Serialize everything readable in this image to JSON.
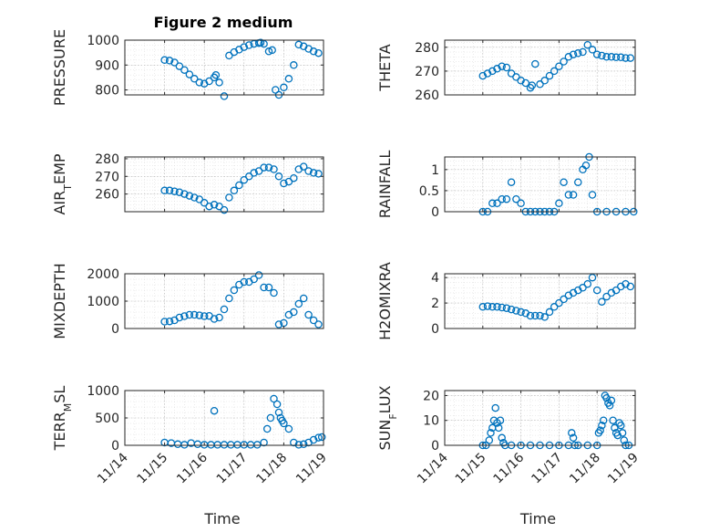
{
  "colors": {
    "marker": "#0072BD",
    "axis": "#262626"
  },
  "chart_data": [
    {
      "type": "scatter",
      "title": "Figure 2 medium",
      "ylabel": "PRESSURE",
      "ylim": [
        780,
        1000
      ],
      "yticks": [
        800,
        900,
        1000
      ],
      "xlim": [
        "11/15 12:00",
        "11/19 00:00"
      ],
      "xticks": [],
      "grid": true,
      "x": [
        "11/15 00:00",
        "11/15 03:00",
        "11/15 06:00",
        "11/15 09:00",
        "11/15 12:00",
        "11/15 15:00",
        "11/15 18:00",
        "11/15 21:00",
        "11/16 00:00",
        "11/16 03:00",
        "11/16 06:00",
        "11/16 07:00",
        "11/16 09:00",
        "11/16 12:00",
        "11/16 15:00",
        "11/16 18:00",
        "11/16 21:00",
        "11/17 00:00",
        "11/17 03:00",
        "11/17 06:00",
        "11/17 09:00",
        "11/17 10:00",
        "11/17 12:00",
        "11/17 15:00",
        "11/17 17:00",
        "11/17 19:00",
        "11/17 21:00",
        "11/18 00:00",
        "11/18 03:00",
        "11/18 06:00",
        "11/18 09:00",
        "11/18 12:00",
        "11/18 15:00",
        "11/18 18:00",
        "11/18 21:00"
      ],
      "y": [
        920,
        918,
        910,
        895,
        880,
        862,
        845,
        830,
        825,
        835,
        850,
        860,
        830,
        775,
        938,
        952,
        962,
        972,
        980,
        985,
        988,
        990,
        985,
        955,
        960,
        800,
        780,
        810,
        845,
        900,
        982,
        975,
        965,
        955,
        948
      ]
    },
    {
      "type": "scatter",
      "ylabel": "THETA",
      "ylim": [
        260,
        283
      ],
      "yticks": [
        260,
        270,
        280
      ],
      "xticks": [],
      "grid": true,
      "x": [
        "11/15 00:00",
        "11/15 03:00",
        "11/15 06:00",
        "11/15 09:00",
        "11/15 12:00",
        "11/15 15:00",
        "11/15 18:00",
        "11/15 21:00",
        "11/16 00:00",
        "11/16 03:00",
        "11/16 06:00",
        "11/16 07:00",
        "11/16 09:00",
        "11/16 12:00",
        "11/16 15:00",
        "11/16 18:00",
        "11/16 21:00",
        "11/17 00:00",
        "11/17 03:00",
        "11/17 06:00",
        "11/17 09:00",
        "11/17 12:00",
        "11/17 15:00",
        "11/17 18:00",
        "11/17 21:00",
        "11/18 00:00",
        "11/18 03:00",
        "11/18 06:00",
        "11/18 09:00",
        "11/18 12:00",
        "11/18 15:00",
        "11/18 18:00",
        "11/18 21:00"
      ],
      "y": [
        268,
        269,
        270,
        271,
        272,
        271.5,
        269,
        267.5,
        266,
        265,
        263,
        264,
        273,
        264.5,
        266,
        268,
        270,
        272,
        274,
        276,
        277,
        277.5,
        278,
        281,
        279,
        277,
        276.5,
        276,
        276,
        275.8,
        275.8,
        275.5,
        275.5
      ]
    },
    {
      "type": "scatter",
      "ylabel": "AIR_TEMP",
      "ylim": [
        250,
        281
      ],
      "yticks": [
        260,
        270,
        280
      ],
      "xticks": [],
      "grid": true,
      "x": [
        "11/15 00:00",
        "11/15 03:00",
        "11/15 06:00",
        "11/15 09:00",
        "11/15 12:00",
        "11/15 15:00",
        "11/15 18:00",
        "11/15 21:00",
        "11/16 00:00",
        "11/16 03:00",
        "11/16 06:00",
        "11/16 09:00",
        "11/16 12:00",
        "11/16 15:00",
        "11/16 18:00",
        "11/16 21:00",
        "11/17 00:00",
        "11/17 03:00",
        "11/17 06:00",
        "11/17 09:00",
        "11/17 12:00",
        "11/17 15:00",
        "11/17 18:00",
        "11/17 21:00",
        "11/18 00:00",
        "11/18 03:00",
        "11/18 06:00",
        "11/18 09:00",
        "11/18 12:00",
        "11/18 15:00",
        "11/18 18:00",
        "11/18 21:00"
      ],
      "y": [
        262,
        262,
        261.5,
        261,
        260,
        259,
        258,
        257,
        255,
        253,
        254,
        253,
        251,
        258,
        262,
        265,
        268,
        270,
        272,
        273,
        275,
        275,
        274,
        270,
        266,
        267,
        269,
        274,
        275.5,
        273,
        272,
        271.5
      ]
    },
    {
      "type": "scatter",
      "ylabel": "RAINFALL",
      "ylim": [
        0,
        1.3
      ],
      "yticks": [
        0,
        0.5,
        1
      ],
      "xticks": [],
      "grid": true,
      "x": [
        "11/15 00:00",
        "11/15 03:00",
        "11/15 06:00",
        "11/15 09:00",
        "11/15 12:00",
        "11/15 15:00",
        "11/15 18:00",
        "11/15 21:00",
        "11/16 00:00",
        "11/16 03:00",
        "11/16 06:00",
        "11/16 09:00",
        "11/16 12:00",
        "11/16 15:00",
        "11/16 18:00",
        "11/16 21:00",
        "11/17 00:00",
        "11/17 03:00",
        "11/17 06:00",
        "11/17 09:00",
        "11/17 12:00",
        "11/17 15:00",
        "11/17 17:00",
        "11/17 19:00",
        "11/17 21:00",
        "11/18 00:00",
        "11/18 06:00",
        "11/18 12:00",
        "11/18 18:00",
        "11/18 23:00"
      ],
      "y": [
        0,
        0,
        0.2,
        0.2,
        0.3,
        0.3,
        0.7,
        0.3,
        0.2,
        0,
        0,
        0,
        0,
        0,
        0,
        0,
        0.2,
        0.7,
        0.4,
        0.4,
        0.7,
        1.0,
        1.1,
        1.3,
        0.4,
        0,
        0,
        0,
        0,
        0
      ]
    },
    {
      "type": "scatter",
      "ylabel": "MIXDEPTH",
      "ylim": [
        0,
        2000
      ],
      "yticks": [
        0,
        1000,
        2000
      ],
      "xticks": [],
      "grid": true,
      "x": [
        "11/15 00:00",
        "11/15 03:00",
        "11/15 06:00",
        "11/15 09:00",
        "11/15 12:00",
        "11/15 15:00",
        "11/15 18:00",
        "11/15 21:00",
        "11/16 00:00",
        "11/16 03:00",
        "11/16 06:00",
        "11/16 09:00",
        "11/16 12:00",
        "11/16 15:00",
        "11/16 18:00",
        "11/16 21:00",
        "11/17 00:00",
        "11/17 03:00",
        "11/17 06:00",
        "11/17 09:00",
        "11/17 12:00",
        "11/17 15:00",
        "11/17 18:00",
        "11/17 21:00",
        "11/18 00:00",
        "11/18 03:00",
        "11/18 06:00",
        "11/18 09:00",
        "11/18 12:00",
        "11/18 15:00",
        "11/18 18:00",
        "11/18 21:00"
      ],
      "y": [
        250,
        260,
        300,
        400,
        450,
        500,
        500,
        480,
        450,
        460,
        350,
        400,
        700,
        1100,
        1400,
        1600,
        1700,
        1700,
        1800,
        1950,
        1500,
        1500,
        1300,
        150,
        200,
        500,
        600,
        900,
        1100,
        500,
        300,
        150
      ]
    },
    {
      "type": "scatter",
      "ylabel": "H2OMIXRA",
      "ylim": [
        0,
        4.3
      ],
      "yticks": [
        0,
        2,
        4
      ],
      "xticks": [],
      "grid": true,
      "x": [
        "11/15 00:00",
        "11/15 03:00",
        "11/15 06:00",
        "11/15 09:00",
        "11/15 12:00",
        "11/15 15:00",
        "11/15 18:00",
        "11/15 21:00",
        "11/16 00:00",
        "11/16 03:00",
        "11/16 06:00",
        "11/16 09:00",
        "11/16 12:00",
        "11/16 15:00",
        "11/16 18:00",
        "11/16 21:00",
        "11/17 00:00",
        "11/17 03:00",
        "11/17 06:00",
        "11/17 09:00",
        "11/17 12:00",
        "11/17 15:00",
        "11/17 18:00",
        "11/17 21:00",
        "11/18 00:00",
        "11/18 03:00",
        "11/18 06:00",
        "11/18 09:00",
        "11/18 12:00",
        "11/18 15:00",
        "11/18 18:00",
        "11/18 21:00"
      ],
      "y": [
        1.7,
        1.75,
        1.7,
        1.7,
        1.65,
        1.6,
        1.5,
        1.4,
        1.3,
        1.2,
        1.0,
        1.0,
        1.0,
        0.9,
        1.3,
        1.7,
        2.0,
        2.3,
        2.6,
        2.8,
        3.0,
        3.2,
        3.5,
        4.0,
        3.0,
        2.1,
        2.5,
        2.8,
        3.0,
        3.3,
        3.5,
        3.3
      ]
    },
    {
      "type": "scatter",
      "ylabel": "TERR_MSL",
      "ylim": [
        0,
        1000
      ],
      "yticks": [
        0,
        500,
        1000
      ],
      "xlim": [
        "11/14 00:00",
        "11/19 00:00"
      ],
      "xticks": [
        "11/14",
        "11/15",
        "11/16",
        "11/17",
        "11/18",
        "11/19"
      ],
      "xlabel": "Time",
      "grid": true,
      "x": [
        "11/15 00:00",
        "11/15 04:00",
        "11/15 08:00",
        "11/15 12:00",
        "11/15 16:00",
        "11/15 20:00",
        "11/16 00:00",
        "11/16 04:00",
        "11/16 06:00",
        "11/16 08:00",
        "11/16 12:00",
        "11/16 16:00",
        "11/16 20:00",
        "11/17 00:00",
        "11/17 04:00",
        "11/17 08:00",
        "11/17 12:00",
        "11/17 14:00",
        "11/17 16:00",
        "11/17 18:00",
        "11/17 20:00",
        "11/17 21:00",
        "11/17 22:00",
        "11/17 23:00",
        "11/18 00:00",
        "11/18 03:00",
        "11/18 06:00",
        "11/18 09:00",
        "11/18 12:00",
        "11/18 15:00",
        "11/18 18:00",
        "11/18 21:00",
        "11/18 23:00"
      ],
      "y": [
        50,
        40,
        20,
        10,
        40,
        20,
        10,
        10,
        630,
        10,
        10,
        10,
        10,
        10,
        10,
        10,
        50,
        300,
        500,
        850,
        750,
        600,
        500,
        450,
        400,
        300,
        50,
        10,
        20,
        50,
        100,
        140,
        150
      ]
    },
    {
      "type": "scatter",
      "ylabel": "SUN_FLUX",
      "ylim": [
        0,
        22
      ],
      "yticks": [
        0,
        10,
        20
      ],
      "xlim": [
        "11/14 00:00",
        "11/19 00:00"
      ],
      "xticks": [
        "11/14",
        "11/15",
        "11/16",
        "11/17",
        "11/18",
        "11/19"
      ],
      "xlabel": "Time",
      "grid": true,
      "x": [
        "11/15 00:00",
        "11/15 02:00",
        "11/15 04:00",
        "11/15 05:00",
        "11/15 06:00",
        "11/15 07:00",
        "11/15 08:00",
        "11/15 09:00",
        "11/15 10:00",
        "11/15 11:00",
        "11/15 12:00",
        "11/15 13:00",
        "11/15 14:00",
        "11/15 18:00",
        "11/16 00:00",
        "11/16 06:00",
        "11/16 12:00",
        "11/16 18:00",
        "11/17 00:00",
        "11/17 06:00",
        "11/17 08:00",
        "11/17 09:00",
        "11/17 10:00",
        "11/17 12:00",
        "11/17 18:00",
        "11/18 00:00",
        "11/18 01:00",
        "11/18 02:00",
        "11/18 03:00",
        "11/18 04:00",
        "11/18 05:00",
        "11/18 06:00",
        "11/18 07:00",
        "11/18 08:00",
        "11/18 09:00",
        "11/18 10:00",
        "11/18 11:00",
        "11/18 12:00",
        "11/18 13:00",
        "11/18 14:00",
        "11/18 15:00",
        "11/18 16:00",
        "11/18 17:00",
        "11/18 18:00",
        "11/18 20:00"
      ],
      "y": [
        0,
        0,
        2,
        5,
        7,
        10,
        15,
        9,
        7,
        10,
        3,
        1,
        0,
        0,
        0,
        0,
        0,
        0,
        0,
        0,
        5,
        3,
        0,
        0,
        0,
        0,
        5,
        6,
        8,
        10,
        20,
        19,
        17,
        16,
        18,
        10,
        7,
        5,
        4,
        9,
        8,
        5,
        2,
        0,
        0
      ]
    }
  ]
}
